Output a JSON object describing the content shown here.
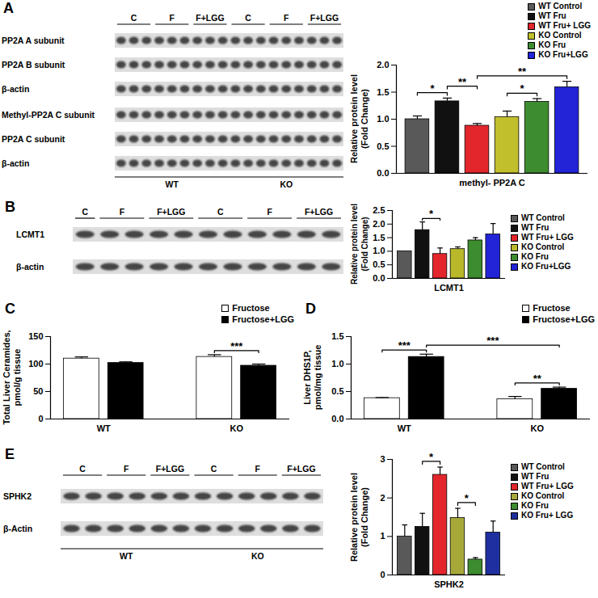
{
  "panel_labels": [
    "A",
    "B",
    "C",
    "D",
    "E"
  ],
  "blots": [
    {
      "rows": [
        "PP2A A subunit",
        "PP2A B subunit",
        "β-actin",
        "Methyl-PP2A C subunit",
        "PP2A C subunit",
        "β-actin"
      ],
      "lanes": [
        "C",
        "F",
        "F+LGG",
        "C",
        "F",
        "F+LGG"
      ],
      "groups": [
        "WT",
        "KO"
      ]
    },
    {
      "rows": [
        "LCMT1",
        "β-actin"
      ],
      "lanes": [
        "C",
        "F",
        "F+LGG",
        "C",
        "F",
        "F+LGG"
      ]
    },
    {
      "rows": [
        "SPHK2",
        "β-Actin"
      ],
      "lanes": [
        "C",
        "F",
        "F+LGG",
        "C",
        "F",
        "F+LGG"
      ],
      "groups": [
        "WT",
        "KO"
      ]
    }
  ],
  "chart_data": [
    {
      "type": "bar",
      "categories": [
        "methyl- PP2A C"
      ],
      "ylabel": "Relative protein level\n(Fold Change)",
      "ylim": [
        0,
        2
      ],
      "yticks": [
        {
          "value": 0,
          "label": "0.0"
        },
        0.5,
        {
          "value": 1,
          "label": "1.0"
        },
        1.5,
        {
          "value": 2,
          "label": "2.0"
        }
      ],
      "legend": "top-right",
      "series": [
        {
          "name": "WT Control",
          "color": "#595959",
          "values": [
            1.0
          ],
          "errors": [
            0.06
          ]
        },
        {
          "name": "WT Fru",
          "color": "#111111",
          "values": [
            1.33
          ],
          "errors": [
            0.06
          ]
        },
        {
          "name": "WT Fru+ LGG",
          "color": "#e3262b",
          "values": [
            0.88
          ],
          "errors": [
            0.04
          ]
        },
        {
          "name": "KO Control",
          "color": "#c1c02c",
          "values": [
            1.04
          ],
          "errors": [
            0.11
          ]
        },
        {
          "name": "KO Fru",
          "color": "#3d8c2f",
          "values": [
            1.32
          ],
          "errors": [
            0.06
          ]
        },
        {
          "name": "KO Fru+LGG",
          "color": "#2323d8",
          "values": [
            1.59
          ],
          "errors": [
            0.11
          ]
        }
      ],
      "annotations": [
        {
          "label": "*",
          "from": [
            "methyl- PP2A C",
            "WT Control"
          ],
          "to": [
            "methyl- PP2A C",
            "WT Fru"
          ]
        },
        {
          "label": "**",
          "from": [
            "methyl- PP2A C",
            "WT Fru"
          ],
          "to": [
            "methyl- PP2A C",
            "WT Fru+ LGG"
          ]
        },
        {
          "label": "*",
          "from": [
            "methyl- PP2A C",
            "KO Control"
          ],
          "to": [
            "methyl- PP2A C",
            "KO Fru"
          ]
        },
        {
          "label": "**",
          "from": [
            "methyl- PP2A C",
            "WT Fru+ LGG"
          ],
          "to": [
            "methyl- PP2A C",
            "KO Fru+LGG"
          ]
        }
      ]
    },
    {
      "type": "bar",
      "categories": [
        "LCMT1"
      ],
      "ylabel": "Relative protein level\n(Fold Change)",
      "ylim": [
        0,
        2.5
      ],
      "yticks": [
        {
          "value": 0,
          "label": "0.0"
        },
        0.5,
        {
          "value": 1,
          "label": "1.0"
        },
        1.5,
        {
          "value": 2,
          "label": "2.0"
        },
        2.5
      ],
      "legend": "right",
      "series": [
        {
          "name": "WT Control",
          "color": "#595959",
          "values": [
            1.0
          ],
          "errors": [
            null
          ]
        },
        {
          "name": "WT Fru",
          "color": "#111111",
          "values": [
            1.78
          ],
          "errors": [
            0.3
          ]
        },
        {
          "name": "WT Fru+ LGG",
          "color": "#e3262b",
          "values": [
            0.9
          ],
          "errors": [
            0.22
          ]
        },
        {
          "name": "KO Control",
          "color": "#b8b82a",
          "values": [
            1.08
          ],
          "errors": [
            0.08
          ]
        },
        {
          "name": "KO Fru",
          "color": "#3d8c2f",
          "values": [
            1.4
          ],
          "errors": [
            0.1
          ]
        },
        {
          "name": "KO Fru+LGG",
          "color": "#2323d8",
          "values": [
            1.62
          ],
          "errors": [
            0.4
          ]
        }
      ],
      "annotations": [
        {
          "label": "*",
          "from": [
            "LCMT1",
            "WT Fru"
          ],
          "to": [
            "LCMT1",
            "WT Fru+ LGG"
          ]
        }
      ]
    },
    {
      "type": "bar",
      "categories": [
        "WT",
        "KO"
      ],
      "ylabel": "Total Liver Ceramides,\npmol/g tissue",
      "ylim": [
        0,
        150
      ],
      "yticks": [
        0,
        50,
        100,
        150
      ],
      "legend": "top-right",
      "series": [
        {
          "name": "Fructose",
          "color": "#ffffff",
          "values": [
            110,
            113
          ],
          "errors": [
            3,
            4
          ]
        },
        {
          "name": "Fructose+LGG",
          "color": "#000000",
          "values": [
            102,
            97
          ],
          "errors": [
            2,
            3
          ]
        }
      ],
      "annotations": [
        {
          "label": "***",
          "from": [
            "KO",
            "Fructose"
          ],
          "to": [
            "KO",
            "Fructose+LGG"
          ]
        }
      ]
    },
    {
      "type": "bar",
      "categories": [
        "WT",
        "KO"
      ],
      "ylabel": "Liver DHS1P,\npmol/mg tissue",
      "ylim": [
        0,
        1.5
      ],
      "yticks": [
        {
          "value": 0,
          "label": "0.0"
        },
        0.5,
        {
          "value": 1,
          "label": "1.0"
        },
        1.5
      ],
      "legend": "top-right",
      "series": [
        {
          "name": "Fructose",
          "color": "#ffffff",
          "values": [
            0.38,
            0.36
          ],
          "errors": [
            0.01,
            0.05
          ]
        },
        {
          "name": "Fructose+LGG",
          "color": "#000000",
          "values": [
            1.13,
            0.55
          ],
          "errors": [
            0.05,
            0.03
          ]
        }
      ],
      "annotations": [
        {
          "label": "***",
          "from": [
            "WT",
            "Fructose"
          ],
          "to": [
            "WT",
            "Fructose+LGG"
          ]
        },
        {
          "label": "**",
          "from": [
            "KO",
            "Fructose"
          ],
          "to": [
            "KO",
            "Fructose+LGG"
          ]
        },
        {
          "label": "***",
          "from": [
            "WT",
            "Fructose+LGG"
          ],
          "to": [
            "KO",
            "Fructose+LGG"
          ]
        }
      ]
    },
    {
      "type": "bar",
      "categories": [
        "SPHK2"
      ],
      "ylabel": "Relative protein level\n(Fold Change)",
      "ylim": [
        0,
        3
      ],
      "yticks": [
        0,
        1,
        2,
        3
      ],
      "legend": "right",
      "series": [
        {
          "name": "WT Control",
          "color": "#595959",
          "values": [
            1.0
          ],
          "errors": [
            0.3
          ]
        },
        {
          "name": "WT Fru",
          "color": "#111111",
          "values": [
            1.25
          ],
          "errors": [
            0.35
          ]
        },
        {
          "name": "WT Fru+ LGG",
          "color": "#e3262b",
          "values": [
            2.6
          ],
          "errors": [
            0.2
          ]
        },
        {
          "name": "KO Control",
          "color": "#a7a83a",
          "values": [
            1.48
          ],
          "errors": [
            0.25
          ]
        },
        {
          "name": "KO Fru",
          "color": "#3d8c2f",
          "values": [
            0.4
          ],
          "errors": [
            0.05
          ]
        },
        {
          "name": "KO Fru+ LGG",
          "color": "#1f2fa0",
          "values": [
            1.1
          ],
          "errors": [
            0.3
          ]
        }
      ],
      "annotations": [
        {
          "label": "*",
          "from": [
            "SPHK2",
            "WT Fru"
          ],
          "to": [
            "SPHK2",
            "WT Fru+ LGG"
          ]
        },
        {
          "label": "*",
          "from": [
            "SPHK2",
            "KO Control"
          ],
          "to": [
            "SPHK2",
            "KO Fru"
          ]
        }
      ]
    }
  ]
}
